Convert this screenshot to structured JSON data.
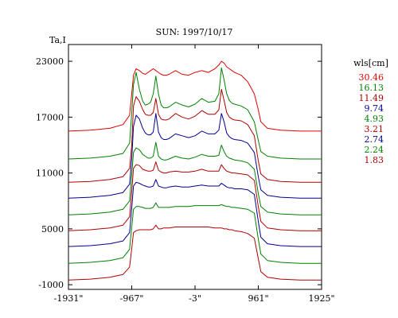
{
  "chart_data": {
    "type": "line",
    "title": "SUN: 1997/10/17",
    "ylabel": "Ta,I",
    "xlabel": "",
    "xlim": [
      -1931,
      1925
    ],
    "ylim": [
      -1500,
      24800
    ],
    "xticks": [
      {
        "value": -1931,
        "label": "-1931\""
      },
      {
        "value": -967,
        "label": "-967\""
      },
      {
        "value": -3,
        "label": "-3\""
      },
      {
        "value": 961,
        "label": "961\""
      },
      {
        "value": 1925,
        "label": "1925\""
      }
    ],
    "yticks": [
      {
        "value": -1000,
        "label": "-1000"
      },
      {
        "value": 5000,
        "label": "5000"
      },
      {
        "value": 11000,
        "label": "11000"
      },
      {
        "value": 17000,
        "label": "17000"
      },
      {
        "value": 23000,
        "label": "23000"
      }
    ],
    "legend": {
      "title": "wls[cm]",
      "placement": "right",
      "entries": [
        {
          "label": "30.46",
          "color": "#e00000"
        },
        {
          "label": "16.13",
          "color": "#008000"
        },
        {
          "label": "11.49",
          "color": "#b00000"
        },
        {
          "label": "9.74",
          "color": "#000090"
        },
        {
          "label": "4.93",
          "color": "#008000"
        },
        {
          "label": "3.21",
          "color": "#b00000"
        },
        {
          "label": "2.74",
          "color": "#000090"
        },
        {
          "label": "2.24",
          "color": "#008000"
        },
        {
          "label": "1.83",
          "color": "#b00000"
        }
      ]
    },
    "x": [
      -1931,
      -1600,
      -1300,
      -1100,
      -1000,
      -967,
      -940,
      -900,
      -850,
      -800,
      -760,
      -720,
      -680,
      -640,
      -600,
      -560,
      -520,
      -480,
      -440,
      -400,
      -300,
      -200,
      -100,
      -3,
      100,
      200,
      300,
      360,
      400,
      440,
      480,
      520,
      560,
      600,
      700,
      800,
      900,
      961,
      1000,
      1100,
      1300,
      1600,
      1925
    ],
    "series": [
      {
        "legend": "30.46",
        "color": "#e00000",
        "values": [
          15500,
          15600,
          15800,
          16200,
          17200,
          19500,
          21500,
          22200,
          22000,
          21700,
          21600,
          21800,
          22000,
          22200,
          22000,
          21800,
          21600,
          21500,
          21500,
          21600,
          22000,
          21600,
          21500,
          21800,
          22000,
          21800,
          22200,
          22600,
          23000,
          22800,
          22400,
          22200,
          22000,
          21800,
          21500,
          20800,
          19500,
          17800,
          16500,
          15800,
          15600,
          15500,
          15500
        ]
      },
      {
        "legend": "16.13",
        "color": "#008000",
        "values": [
          12500,
          12600,
          12800,
          13100,
          14200,
          17500,
          20500,
          21800,
          20000,
          18700,
          18300,
          18400,
          18600,
          19500,
          21400,
          19500,
          18300,
          18000,
          18000,
          18100,
          18600,
          18300,
          18100,
          18400,
          19000,
          18600,
          18700,
          19500,
          22300,
          21000,
          19500,
          18800,
          18500,
          18400,
          18200,
          17800,
          16500,
          14500,
          13300,
          12800,
          12600,
          12500,
          12500
        ]
      },
      {
        "legend": "11.49",
        "color": "#b00000",
        "values": [
          10000,
          10100,
          10300,
          10600,
          11500,
          14000,
          18200,
          19200,
          18700,
          17800,
          17300,
          17200,
          17200,
          17500,
          19000,
          17300,
          16800,
          16700,
          16700,
          16800,
          17400,
          17000,
          16800,
          17100,
          17700,
          17300,
          17300,
          17800,
          20000,
          18800,
          17500,
          17000,
          16800,
          16700,
          16600,
          16200,
          15000,
          12300,
          10900,
          10300,
          10100,
          10000,
          10000
        ]
      },
      {
        "legend": "9.74",
        "color": "#000090",
        "values": [
          8300,
          8400,
          8600,
          8900,
          9800,
          12500,
          16000,
          17200,
          16800,
          15800,
          15300,
          15100,
          15100,
          15400,
          17400,
          15400,
          14800,
          14600,
          14600,
          14700,
          15200,
          15000,
          14800,
          15000,
          15500,
          15200,
          15200,
          15600,
          17400,
          16500,
          15300,
          14900,
          14700,
          14600,
          14500,
          14200,
          13200,
          10600,
          9200,
          8600,
          8400,
          8300,
          8300
        ]
      },
      {
        "legend": "4.93",
        "color": "#008000",
        "values": [
          6500,
          6600,
          6800,
          7100,
          8000,
          10800,
          13200,
          13700,
          13500,
          13000,
          12800,
          12600,
          12600,
          12800,
          14300,
          12800,
          12500,
          12400,
          12400,
          12500,
          12800,
          12600,
          12500,
          12700,
          13000,
          12800,
          12800,
          12900,
          14000,
          13300,
          12800,
          12600,
          12500,
          12400,
          12300,
          12100,
          11400,
          8800,
          7400,
          6800,
          6600,
          6500,
          6500
        ]
      },
      {
        "legend": "3.21",
        "color": "#b00000",
        "values": [
          4800,
          4900,
          5100,
          5400,
          6300,
          9000,
          11500,
          11900,
          11800,
          11400,
          11300,
          11200,
          11200,
          11300,
          12200,
          11300,
          11100,
          11000,
          11000,
          11100,
          11200,
          11100,
          11100,
          11200,
          11400,
          11200,
          11200,
          11200,
          11900,
          11500,
          11200,
          11100,
          11000,
          11000,
          10900,
          10800,
          10200,
          7400,
          5800,
          5100,
          4900,
          4800,
          4800
        ]
      },
      {
        "legend": "2.74",
        "color": "#000090",
        "values": [
          3100,
          3200,
          3400,
          3700,
          4600,
          7200,
          9600,
          10000,
          9900,
          9700,
          9600,
          9500,
          9500,
          9600,
          10300,
          9600,
          9500,
          9400,
          9400,
          9500,
          9600,
          9500,
          9500,
          9600,
          9700,
          9600,
          9600,
          9600,
          9900,
          9700,
          9500,
          9400,
          9400,
          9300,
          9300,
          9200,
          8700,
          5800,
          4100,
          3400,
          3200,
          3100,
          3100
        ]
      },
      {
        "legend": "2.24",
        "color": "#008000",
        "values": [
          1300,
          1400,
          1600,
          1900,
          2800,
          5200,
          7100,
          7400,
          7400,
          7300,
          7200,
          7200,
          7200,
          7300,
          7800,
          7300,
          7300,
          7300,
          7300,
          7300,
          7400,
          7400,
          7400,
          7500,
          7500,
          7500,
          7500,
          7500,
          7600,
          7500,
          7400,
          7400,
          7300,
          7300,
          7200,
          7100,
          6700,
          3900,
          2300,
          1600,
          1400,
          1300,
          1300
        ]
      },
      {
        "legend": "1.83",
        "color": "#b00000",
        "values": [
          -500,
          -400,
          -200,
          100,
          900,
          2900,
          4600,
          4800,
          4900,
          4900,
          4900,
          4900,
          4900,
          5000,
          5400,
          5000,
          5000,
          5100,
          5100,
          5100,
          5200,
          5200,
          5200,
          5200,
          5200,
          5200,
          5100,
          5100,
          5100,
          5000,
          5000,
          4900,
          4900,
          4800,
          4700,
          4500,
          4000,
          1800,
          400,
          -200,
          -400,
          -500,
          -500
        ]
      }
    ]
  }
}
